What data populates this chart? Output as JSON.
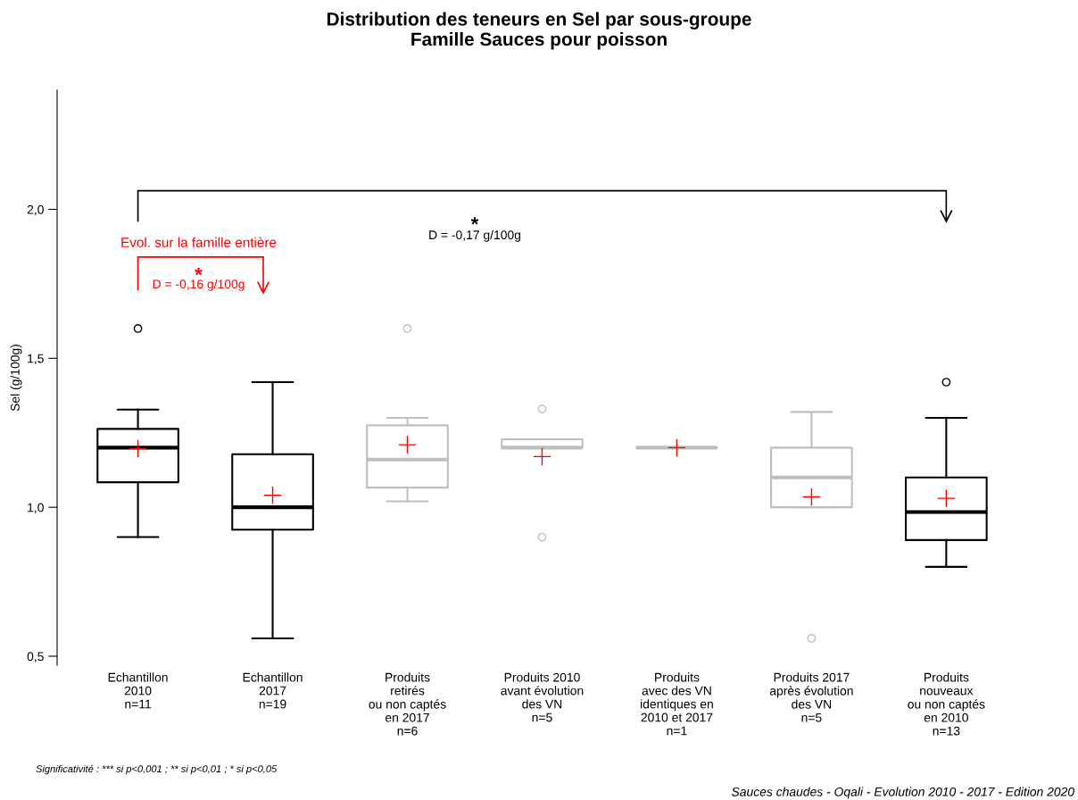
{
  "chart_data": {
    "type": "box",
    "title": "Distribution des teneurs en Sel par sous-groupe\nFamille Sauces pour poisson",
    "ylabel": "Sel (g/100g)",
    "categories": [
      "Echantillon\n2010\nn=11",
      "Echantillon\n2017\nn=19",
      "Produits\nretirés\nou non captés\nen 2017\nn=6",
      "Produits 2010\navant évolution\ndes VN\nn=5",
      "Produits\navec des VN\nidentiques en\n2010 et 2017\nn=1",
      "Produits 2017\naprès évolution\ndes VN\nn=5",
      "Produits\nnouveaux\nou non captés\nen 2010\nn=13"
    ],
    "boxes": [
      {
        "low": 0.9,
        "q1": 1.084,
        "median": 1.2,
        "q3": 1.263,
        "high": 1.328,
        "mean": 1.197,
        "outliers": [
          1.6
        ]
      },
      {
        "low": 0.56,
        "q1": 0.925,
        "median": 1.0,
        "q3": 1.178,
        "high": 1.42,
        "mean": 1.04
      },
      {
        "low": 1.02,
        "q1": 1.066,
        "median": 1.16,
        "q3": 1.275,
        "high": 1.3,
        "mean": 1.21,
        "outliers": [
          1.6
        ]
      },
      {
        "low": 1.2,
        "q1": 1.2,
        "median": 1.2,
        "q3": 1.228,
        "high": 1.228,
        "mean": 1.17,
        "outliers": [
          1.33,
          0.9
        ]
      },
      {
        "low": 1.2,
        "q1": 1.2,
        "median": 1.2,
        "q3": 1.2,
        "high": 1.2,
        "mean": 1.2
      },
      {
        "low": 1.0,
        "q1": 1.0,
        "median": 1.1,
        "q3": 1.2,
        "high": 1.32,
        "mean": 1.035,
        "outliers": [
          0.56
        ]
      },
      {
        "low": 0.8,
        "q1": 0.89,
        "median": 0.984,
        "q3": 1.1,
        "high": 1.3,
        "mean": 1.03,
        "outliers": [
          1.42
        ]
      }
    ],
    "colors": [
      "#000000",
      "#000000",
      "#bfbfbf",
      "#bfbfbf",
      "#bfbfbf",
      "#bfbfbf",
      "#000000"
    ],
    "ylim": [
      0.47,
      2.4
    ],
    "yticks": [
      {
        "value": 0.5,
        "label": "0,5"
      },
      {
        "value": 1.0,
        "label": "1,0"
      },
      {
        "value": 1.5,
        "label": "1,5"
      },
      {
        "value": 2.0,
        "label": "2,0"
      }
    ],
    "grid": false,
    "annotations": [
      "*",
      "D = -0,17 g/100g",
      "Evol. sur la famille entière",
      "*",
      "D = -0,16 g/100g",
      "Significativité : *** si p<0,001 ; ** si p<0,01 ; * si p<0,05",
      "Sauces chaudes - Oqali - Evolution 2010 - 2017 - Edition 2020"
    ]
  }
}
